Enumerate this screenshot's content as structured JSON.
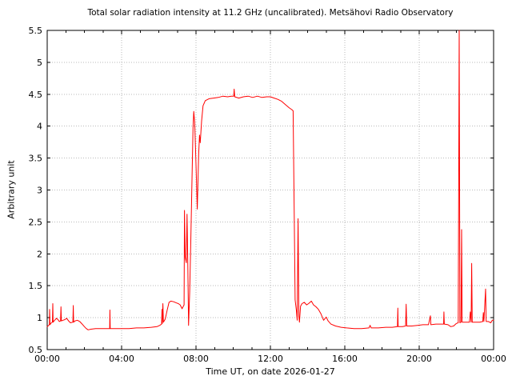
{
  "chart_data": {
    "type": "line",
    "title": "Total solar radiation intensity at 11.2 GHz (uncalibrated). Metsähovi Radio Observatory",
    "xlabel": "Time UT, on date 2026-01-27",
    "ylabel": "Arbitrary unit",
    "xlim": [
      0,
      24
    ],
    "ylim": [
      0.5,
      5.5
    ],
    "grid": "dotted-at-major-ticks",
    "legend": "none",
    "colors": {
      "line": "#ff0000",
      "axis": "#000000",
      "grid": "#b9b9b9",
      "background": "#ffffff"
    },
    "x_minor_step": 1,
    "x_ticks": [
      {
        "t": 0,
        "label": "00:00"
      },
      {
        "t": 4,
        "label": "04:00"
      },
      {
        "t": 8,
        "label": "08:00"
      },
      {
        "t": 12,
        "label": "12:00"
      },
      {
        "t": 16,
        "label": "16:00"
      },
      {
        "t": 20,
        "label": "20:00"
      },
      {
        "t": 24,
        "label": "00:00"
      }
    ],
    "y_ticks": [
      {
        "v": 0.5,
        "label": "0.5"
      },
      {
        "v": 1,
        "label": "1"
      },
      {
        "v": 1.5,
        "label": "1.5"
      },
      {
        "v": 2,
        "label": "2"
      },
      {
        "v": 2.5,
        "label": "2.5"
      },
      {
        "v": 3,
        "label": "3"
      },
      {
        "v": 3.5,
        "label": "3.5"
      },
      {
        "v": 4,
        "label": "4"
      },
      {
        "v": 4.5,
        "label": "4.5"
      },
      {
        "v": 5,
        "label": "5"
      },
      {
        "v": 5.5,
        "label": "5.5"
      }
    ],
    "series": [
      {
        "points": [
          [
            0.0,
            0.86
          ],
          [
            0.08,
            0.88
          ],
          [
            0.12,
            0.9
          ],
          [
            0.13,
            1.13
          ],
          [
            0.15,
            0.89
          ],
          [
            0.22,
            0.92
          ],
          [
            0.28,
            0.93
          ],
          [
            0.3,
            1.22
          ],
          [
            0.32,
            0.93
          ],
          [
            0.4,
            0.96
          ],
          [
            0.5,
            0.99
          ],
          [
            0.58,
            0.97
          ],
          [
            0.65,
            0.94
          ],
          [
            0.72,
            0.95
          ],
          [
            0.74,
            1.17
          ],
          [
            0.76,
            0.95
          ],
          [
            0.85,
            0.96
          ],
          [
            0.95,
            0.97
          ],
          [
            1.05,
            0.99
          ],
          [
            1.15,
            0.95
          ],
          [
            1.25,
            0.92
          ],
          [
            1.38,
            0.93
          ],
          [
            1.4,
            1.19
          ],
          [
            1.42,
            0.93
          ],
          [
            1.5,
            0.95
          ],
          [
            1.62,
            0.96
          ],
          [
            1.75,
            0.94
          ],
          [
            1.88,
            0.9
          ],
          [
            2.0,
            0.86
          ],
          [
            2.1,
            0.83
          ],
          [
            2.2,
            0.81
          ],
          [
            2.35,
            0.82
          ],
          [
            2.6,
            0.83
          ],
          [
            2.9,
            0.83
          ],
          [
            3.2,
            0.83
          ],
          [
            3.36,
            0.83
          ],
          [
            3.37,
            1.12
          ],
          [
            3.39,
            0.83
          ],
          [
            3.7,
            0.83
          ],
          [
            4.0,
            0.83
          ],
          [
            4.4,
            0.83
          ],
          [
            4.8,
            0.84
          ],
          [
            5.2,
            0.84
          ],
          [
            5.6,
            0.85
          ],
          [
            5.9,
            0.86
          ],
          [
            6.05,
            0.88
          ],
          [
            6.15,
            0.9
          ],
          [
            6.17,
            1.13
          ],
          [
            6.19,
            0.91
          ],
          [
            6.22,
            1.22
          ],
          [
            6.25,
            0.93
          ],
          [
            6.35,
            0.98
          ],
          [
            6.45,
            1.12
          ],
          [
            6.55,
            1.24
          ],
          [
            6.65,
            1.26
          ],
          [
            6.8,
            1.25
          ],
          [
            6.95,
            1.23
          ],
          [
            7.05,
            1.22
          ],
          [
            7.15,
            1.2
          ],
          [
            7.25,
            1.14
          ],
          [
            7.32,
            1.18
          ],
          [
            7.36,
            1.2
          ],
          [
            7.38,
            2.68
          ],
          [
            7.42,
            1.95
          ],
          [
            7.48,
            1.86
          ],
          [
            7.52,
            2.62
          ],
          [
            7.56,
            1.8
          ],
          [
            7.6,
            0.88
          ],
          [
            7.66,
            1.4
          ],
          [
            7.72,
            2.2
          ],
          [
            7.78,
            3.1
          ],
          [
            7.84,
            3.98
          ],
          [
            7.88,
            4.23
          ],
          [
            7.93,
            4.05
          ],
          [
            8.0,
            3.4
          ],
          [
            8.07,
            2.7
          ],
          [
            8.14,
            3.55
          ],
          [
            8.19,
            3.86
          ],
          [
            8.23,
            3.74
          ],
          [
            8.3,
            4.08
          ],
          [
            8.38,
            4.32
          ],
          [
            8.5,
            4.4
          ],
          [
            8.7,
            4.43
          ],
          [
            8.95,
            4.44
          ],
          [
            9.2,
            4.45
          ],
          [
            9.45,
            4.47
          ],
          [
            9.7,
            4.46
          ],
          [
            9.9,
            4.47
          ],
          [
            10.03,
            4.47
          ],
          [
            10.05,
            4.58
          ],
          [
            10.08,
            4.46
          ],
          [
            10.3,
            4.44
          ],
          [
            10.55,
            4.46
          ],
          [
            10.8,
            4.47
          ],
          [
            11.05,
            4.45
          ],
          [
            11.3,
            4.47
          ],
          [
            11.55,
            4.45
          ],
          [
            11.8,
            4.46
          ],
          [
            12.0,
            4.46
          ],
          [
            12.2,
            4.44
          ],
          [
            12.4,
            4.42
          ],
          [
            12.6,
            4.39
          ],
          [
            12.8,
            4.34
          ],
          [
            13.0,
            4.29
          ],
          [
            13.15,
            4.26
          ],
          [
            13.22,
            4.24
          ],
          [
            13.28,
            2.6
          ],
          [
            13.33,
            1.28
          ],
          [
            13.4,
            1.1
          ],
          [
            13.44,
            0.96
          ],
          [
            13.49,
            2.55
          ],
          [
            13.53,
            1.02
          ],
          [
            13.56,
            0.93
          ],
          [
            13.62,
            1.18
          ],
          [
            13.7,
            1.22
          ],
          [
            13.82,
            1.24
          ],
          [
            13.95,
            1.2
          ],
          [
            14.05,
            1.22
          ],
          [
            14.2,
            1.26
          ],
          [
            14.32,
            1.2
          ],
          [
            14.45,
            1.17
          ],
          [
            14.58,
            1.13
          ],
          [
            14.72,
            1.06
          ],
          [
            14.86,
            0.96
          ],
          [
            15.0,
            1.01
          ],
          [
            15.1,
            0.95
          ],
          [
            15.25,
            0.9
          ],
          [
            15.5,
            0.87
          ],
          [
            15.8,
            0.85
          ],
          [
            16.1,
            0.84
          ],
          [
            16.5,
            0.83
          ],
          [
            16.9,
            0.83
          ],
          [
            17.3,
            0.84
          ],
          [
            17.36,
            0.88
          ],
          [
            17.42,
            0.84
          ],
          [
            17.8,
            0.84
          ],
          [
            18.2,
            0.85
          ],
          [
            18.55,
            0.85
          ],
          [
            18.83,
            0.86
          ],
          [
            18.85,
            1.15
          ],
          [
            18.87,
            0.86
          ],
          [
            19.1,
            0.86
          ],
          [
            19.27,
            0.87
          ],
          [
            19.3,
            1.21
          ],
          [
            19.33,
            0.87
          ],
          [
            19.6,
            0.87
          ],
          [
            19.9,
            0.88
          ],
          [
            20.2,
            0.89
          ],
          [
            20.5,
            0.89
          ],
          [
            20.6,
            1.03
          ],
          [
            20.63,
            0.89
          ],
          [
            20.9,
            0.9
          ],
          [
            21.15,
            0.9
          ],
          [
            21.31,
            0.9
          ],
          [
            21.33,
            1.09
          ],
          [
            21.35,
            0.9
          ],
          [
            21.55,
            0.89
          ],
          [
            21.7,
            0.86
          ],
          [
            21.85,
            0.87
          ],
          [
            22.0,
            0.91
          ],
          [
            22.1,
            0.92
          ],
          [
            22.15,
            5.5
          ],
          [
            22.19,
            0.92
          ],
          [
            22.25,
            0.93
          ],
          [
            22.28,
            2.38
          ],
          [
            22.31,
            0.93
          ],
          [
            22.5,
            0.93
          ],
          [
            22.7,
            0.93
          ],
          [
            22.75,
            1.09
          ],
          [
            22.79,
            0.93
          ],
          [
            22.82,
            1.85
          ],
          [
            22.85,
            0.93
          ],
          [
            23.05,
            0.93
          ],
          [
            23.25,
            0.93
          ],
          [
            23.42,
            0.94
          ],
          [
            23.45,
            1.08
          ],
          [
            23.48,
            0.94
          ],
          [
            23.57,
            1.45
          ],
          [
            23.6,
            0.94
          ],
          [
            23.72,
            0.94
          ],
          [
            23.85,
            0.92
          ],
          [
            23.93,
            0.96
          ],
          [
            24.0,
            0.96
          ]
        ]
      }
    ]
  }
}
